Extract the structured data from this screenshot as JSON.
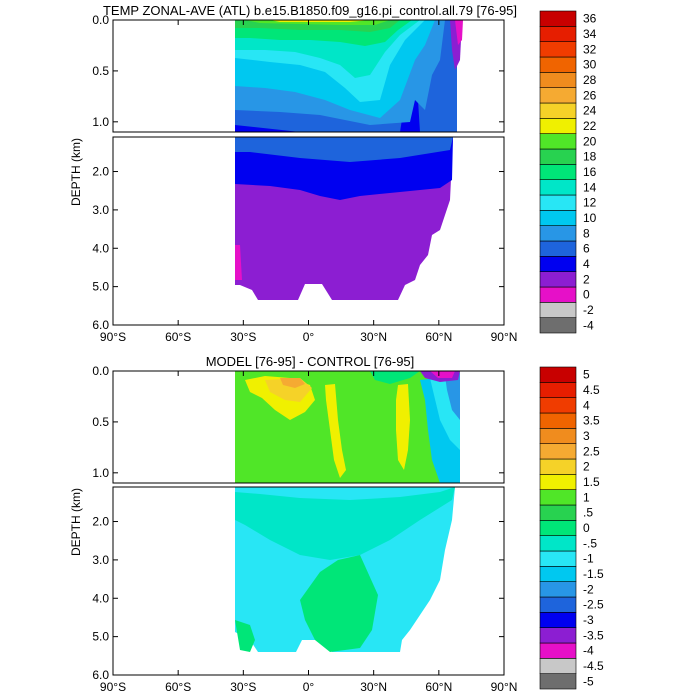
{
  "chart_data": [
    {
      "type": "heatmap",
      "title": "TEMP ZONAL-AVE (ATL) b.e15.B1850.f09_g16.pi_control.all.79 [76-95]",
      "ylabel": "DEPTH (km)",
      "xlim": [
        -90,
        90
      ],
      "ylim": [
        6.0,
        0.0
      ],
      "depth_break_km": 1.1,
      "x_ticks": [
        {
          "value": -90,
          "label": "90°S"
        },
        {
          "value": -60,
          "label": "60°S"
        },
        {
          "value": -30,
          "label": "30°S"
        },
        {
          "value": 0,
          "label": "0°"
        },
        {
          "value": 30,
          "label": "30°N"
        },
        {
          "value": 60,
          "label": "60°N"
        },
        {
          "value": 90,
          "label": "90°N"
        }
      ],
      "y_ticks_upper": [
        {
          "value": 0.0,
          "label": "0.0"
        },
        {
          "value": 0.5,
          "label": "0.5"
        },
        {
          "value": 1.0,
          "label": "1.0"
        }
      ],
      "y_ticks_lower": [
        {
          "value": 2.0,
          "label": "2.0"
        },
        {
          "value": 3.0,
          "label": "3.0"
        },
        {
          "value": 4.0,
          "label": "4.0"
        },
        {
          "value": 5.0,
          "label": "5.0"
        },
        {
          "value": 6.0,
          "label": "6.0"
        }
      ],
      "colorbar": {
        "labels": [
          "-4",
          "-2",
          "0",
          "2",
          "4",
          "6",
          "8",
          "10",
          "12",
          "14",
          "16",
          "18",
          "20",
          "22",
          "24",
          "26",
          "28",
          "30",
          "32",
          "34",
          "36"
        ],
        "colors": [
          "#6e6e6e",
          "#c8c8c8",
          "#e610c8",
          "#8c1ed2",
          "#0000f0",
          "#1e64dc",
          "#2896e6",
          "#00c8f0",
          "#28e6f5",
          "#00e6c8",
          "#00e678",
          "#28d250",
          "#50e628",
          "#f0f000",
          "#f5d228",
          "#f5aa32",
          "#f08c1e",
          "#f06400",
          "#f03c00",
          "#e61e00",
          "#c80000"
        ]
      },
      "samples": {
        "latitudes": [
          -34,
          -20,
          0,
          20,
          40,
          60
        ],
        "surface_temp": [
          20,
          24,
          26,
          25,
          18,
          8
        ],
        "temp_500m": [
          8,
          9,
          9,
          12,
          11,
          5
        ],
        "temp_1000m": [
          5,
          5,
          5,
          6,
          7,
          4
        ],
        "temp_deep_3000m": [
          3,
          3,
          3,
          3,
          3,
          3
        ]
      }
    },
    {
      "type": "heatmap",
      "title": "MODEL [76-95] - CONTROL [76-95]",
      "ylabel": "DEPTH (km)",
      "xlim": [
        -90,
        90
      ],
      "ylim": [
        6.0,
        0.0
      ],
      "depth_break_km": 1.1,
      "x_ticks": [
        {
          "value": -90,
          "label": "90°S"
        },
        {
          "value": -60,
          "label": "60°S"
        },
        {
          "value": -30,
          "label": "30°S"
        },
        {
          "value": 0,
          "label": "0°"
        },
        {
          "value": 30,
          "label": "30°N"
        },
        {
          "value": 60,
          "label": "60°N"
        },
        {
          "value": 90,
          "label": "90°N"
        }
      ],
      "y_ticks_upper": [
        {
          "value": 0.0,
          "label": "0.0"
        },
        {
          "value": 0.5,
          "label": "0.5"
        },
        {
          "value": 1.0,
          "label": "1.0"
        }
      ],
      "y_ticks_lower": [
        {
          "value": 2.0,
          "label": "2.0"
        },
        {
          "value": 3.0,
          "label": "3.0"
        },
        {
          "value": 4.0,
          "label": "4.0"
        },
        {
          "value": 5.0,
          "label": "5.0"
        },
        {
          "value": 6.0,
          "label": "6.0"
        }
      ],
      "colorbar": {
        "labels": [
          "-5",
          "-4.5",
          "-4",
          "-3.5",
          "-3",
          "-2.5",
          "-2",
          "-1.5",
          "-1",
          "-.5",
          "0",
          ".5",
          "1",
          "1.5",
          "2",
          "2.5",
          "3",
          "3.5",
          "4",
          "4.5",
          "5"
        ],
        "colors": [
          "#6e6e6e",
          "#c8c8c8",
          "#e610c8",
          "#8c1ed2",
          "#0000f0",
          "#1e64dc",
          "#2896e6",
          "#00c8f0",
          "#28e6f5",
          "#00e6c8",
          "#00e678",
          "#28d250",
          "#50e628",
          "#f0f000",
          "#f5d228",
          "#f5aa32",
          "#f08c1e",
          "#f06400",
          "#f03c00",
          "#e61e00",
          "#c80000"
        ]
      },
      "samples": {
        "latitudes": [
          -34,
          -20,
          0,
          20,
          40,
          60
        ],
        "surface_anom": [
          0.6,
          1.5,
          1.8,
          1.0,
          0.8,
          -3.5
        ],
        "anom_500m": [
          0.6,
          1.2,
          0.8,
          0.3,
          1.6,
          -0.6
        ],
        "anom_deep_3000m": [
          -0.6,
          -0.6,
          -0.7,
          -0.6,
          -0.8,
          -0.7
        ]
      }
    }
  ]
}
